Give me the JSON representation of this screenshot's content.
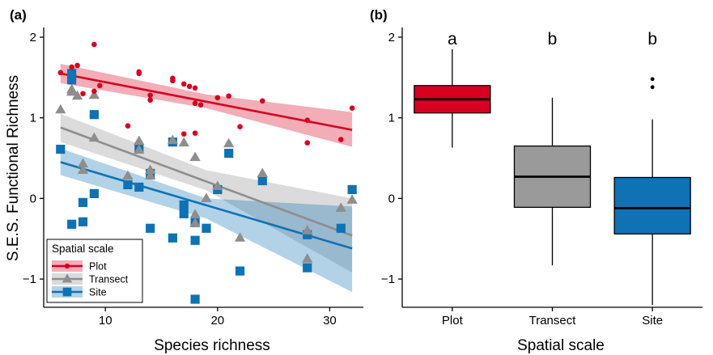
{
  "figure": {
    "panels": [
      "(a)",
      "(b)"
    ]
  },
  "chart_data": [
    {
      "type": "scatter",
      "panel_label": "(a)",
      "xlabel": "Species richness",
      "ylabel": "S.E.S. Functional Richness",
      "xlim": [
        4.5,
        33
      ],
      "ylim": [
        -1.35,
        2.1
      ],
      "xticks": [
        10,
        20,
        30
      ],
      "yticks": [
        -1,
        0,
        1,
        2
      ],
      "grid": false,
      "legend": {
        "title": "Spatial scale",
        "position": "bottom-left",
        "entries": [
          "Plot",
          "Transect",
          "Site"
        ]
      },
      "series": [
        {
          "name": "Plot",
          "color": "#D7001F",
          "marker": "circle",
          "points": [
            [
              6,
              1.56
            ],
            [
              7,
              1.63
            ],
            [
              7.5,
              1.65
            ],
            [
              8,
              1.3
            ],
            [
              9,
              1.91
            ],
            [
              9,
              1.33
            ],
            [
              9.5,
              1.4
            ],
            [
              12,
              0.9
            ],
            [
              13,
              1.57
            ],
            [
              13,
              1.55
            ],
            [
              14,
              1.28
            ],
            [
              14,
              1.22
            ],
            [
              16,
              1.46
            ],
            [
              16,
              1.49
            ],
            [
              17,
              1.42
            ],
            [
              17,
              0.8
            ],
            [
              17.5,
              1.39
            ],
            [
              18,
              1.37
            ],
            [
              18,
              1.18
            ],
            [
              18,
              0.81
            ],
            [
              18.5,
              1.16
            ],
            [
              20,
              1.25
            ],
            [
              21,
              1.27
            ],
            [
              22,
              0.89
            ],
            [
              24,
              1.21
            ],
            [
              28,
              0.97
            ],
            [
              28,
              0.69
            ],
            [
              31,
              0.73
            ],
            [
              32,
              1.12
            ]
          ],
          "fit": {
            "x": [
              6,
              32
            ],
            "y": [
              1.55,
              0.85
            ]
          },
          "ci_upper": {
            "x": [
              6,
              19,
              32
            ],
            "y": [
              1.67,
              1.29,
              1.07
            ]
          },
          "ci_lower": {
            "x": [
              6,
              19,
              32
            ],
            "y": [
              1.43,
              1.12,
              0.64
            ]
          }
        },
        {
          "name": "Transect",
          "color": "#8E8E8E",
          "marker": "triangle",
          "points": [
            [
              6,
              1.1
            ],
            [
              7,
              1.32
            ],
            [
              7,
              1.35
            ],
            [
              7.5,
              1.27
            ],
            [
              8,
              0.43
            ],
            [
              8,
              0.35
            ],
            [
              9,
              1.28
            ],
            [
              9,
              0.75
            ],
            [
              12,
              0.28
            ],
            [
              13,
              0.71
            ],
            [
              13,
              0.6
            ],
            [
              14,
              0.35
            ],
            [
              14,
              0.28
            ],
            [
              16,
              0.72
            ],
            [
              17,
              0.69
            ],
            [
              18,
              0.51
            ],
            [
              18,
              -0.2
            ],
            [
              18,
              -0.31
            ],
            [
              19,
              0.0
            ],
            [
              20,
              0.15
            ],
            [
              21,
              0.68
            ],
            [
              22,
              -0.49
            ],
            [
              24,
              0.31
            ],
            [
              28,
              -0.4
            ],
            [
              28,
              -0.75
            ],
            [
              31,
              -0.12
            ],
            [
              32,
              -0.02
            ]
          ],
          "fit": {
            "x": [
              6,
              32
            ],
            "y": [
              0.88,
              -0.46
            ]
          },
          "ci_upper": {
            "x": [
              6,
              19,
              32
            ],
            "y": [
              1.05,
              0.35,
              0.0
            ]
          },
          "ci_lower": {
            "x": [
              6,
              19,
              32
            ],
            "y": [
              0.7,
              0.1,
              -0.92
            ]
          }
        },
        {
          "name": "Site",
          "color": "#0E72B5",
          "marker": "square",
          "points": [
            [
              6,
              0.61
            ],
            [
              7,
              1.55
            ],
            [
              7,
              1.47
            ],
            [
              7,
              -0.32
            ],
            [
              8,
              -0.29
            ],
            [
              8,
              -0.05
            ],
            [
              9,
              1.04
            ],
            [
              9,
              0.06
            ],
            [
              12,
              0.17
            ],
            [
              13,
              0.63
            ],
            [
              13,
              0.14
            ],
            [
              14,
              0.31
            ],
            [
              14,
              -0.37
            ],
            [
              16,
              0.7
            ],
            [
              16,
              -0.49
            ],
            [
              17,
              -0.08
            ],
            [
              17,
              -0.19
            ],
            [
              18,
              -0.3
            ],
            [
              18,
              -0.52
            ],
            [
              18,
              -1.25
            ],
            [
              19,
              -0.37
            ],
            [
              20,
              0.11
            ],
            [
              21,
              0.56
            ],
            [
              22,
              -0.9
            ],
            [
              24,
              0.22
            ],
            [
              28,
              -0.45
            ],
            [
              28,
              -0.86
            ],
            [
              31,
              -0.37
            ],
            [
              32,
              0.11
            ]
          ],
          "fit": {
            "x": [
              6,
              32
            ],
            "y": [
              0.45,
              -0.62
            ]
          },
          "ci_upper": {
            "x": [
              6,
              19,
              32
            ],
            "y": [
              0.62,
              0.0,
              -0.1
            ]
          },
          "ci_lower": {
            "x": [
              6,
              19,
              32
            ],
            "y": [
              0.29,
              -0.25,
              -1.16
            ]
          }
        }
      ]
    },
    {
      "type": "box",
      "panel_label": "(b)",
      "xlabel": "Spatial scale",
      "ylabel": "",
      "ylim": [
        -1.35,
        2.1
      ],
      "yticks": [
        -1,
        0,
        1,
        2
      ],
      "categories": [
        "Plot",
        "Transect",
        "Site"
      ],
      "significance_letters": [
        "a",
        "b",
        "b"
      ],
      "boxes": [
        {
          "name": "Plot",
          "color": "#D7001F",
          "whisker_low": 0.63,
          "q1": 1.06,
          "median": 1.23,
          "q3": 1.4,
          "whisker_high": 1.85,
          "outliers": []
        },
        {
          "name": "Transect",
          "color": "#9A9A9A",
          "whisker_low": -0.83,
          "q1": -0.11,
          "median": 0.27,
          "q3": 0.65,
          "whisker_high": 1.25,
          "outliers": []
        },
        {
          "name": "Site",
          "color": "#0E72B5",
          "whisker_low": -1.32,
          "q1": -0.44,
          "median": -0.12,
          "q3": 0.26,
          "whisker_high": 0.98,
          "outliers": [
            1.38,
            1.48
          ]
        }
      ]
    }
  ]
}
